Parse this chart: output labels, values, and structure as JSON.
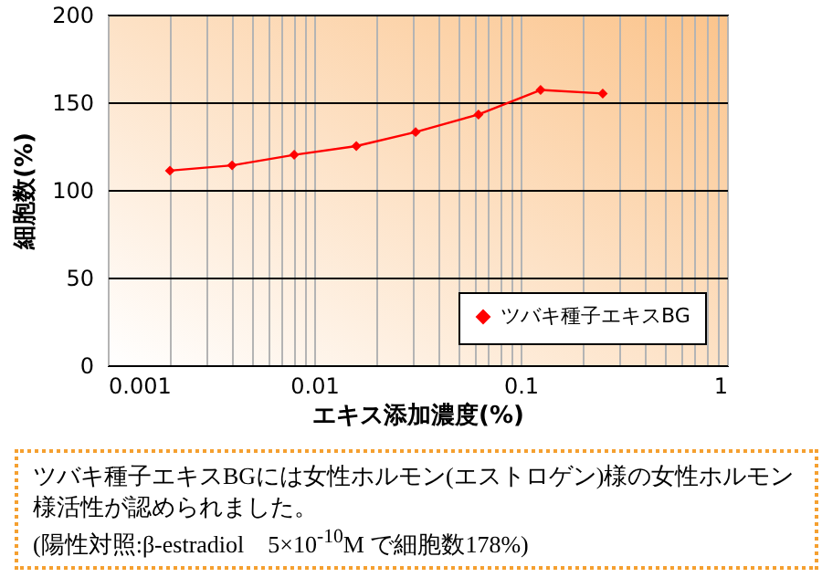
{
  "chart_data": {
    "type": "line",
    "xlabel": "エキス添加濃度(%)",
    "ylabel": "細胞数(%)",
    "x": [
      0.002,
      0.004,
      0.008,
      0.016,
      0.031,
      0.0625,
      0.125,
      0.25
    ],
    "series": [
      {
        "name": "ツバキ種子エキスBG",
        "color": "#ff0000",
        "values": [
          111,
          114,
          120,
          125,
          133,
          143,
          157,
          155
        ]
      }
    ],
    "log": "x",
    "xlim": [
      0.001,
      1
    ],
    "xticks": [
      0.001,
      {
        "value": 0.002,
        "label": null
      },
      {
        "value": 0.003,
        "label": null
      },
      {
        "value": 0.004,
        "label": null
      },
      {
        "value": 0.005,
        "label": null
      },
      {
        "value": 0.006,
        "label": null
      },
      {
        "value": 0.007,
        "label": null
      },
      {
        "value": 0.008,
        "label": null
      },
      {
        "value": 0.009,
        "label": null
      },
      0.01,
      {
        "value": 0.02,
        "label": null
      },
      {
        "value": 0.03,
        "label": null
      },
      {
        "value": 0.04,
        "label": null
      },
      {
        "value": 0.05,
        "label": null
      },
      {
        "value": 0.06,
        "label": null
      },
      {
        "value": 0.07,
        "label": null
      },
      {
        "value": 0.08,
        "label": null
      },
      {
        "value": 0.09,
        "label": null
      },
      0.1,
      {
        "value": 0.2,
        "label": null
      },
      {
        "value": 0.3,
        "label": null
      },
      {
        "value": 0.4,
        "label": null
      },
      {
        "value": 0.5,
        "label": null
      },
      {
        "value": 0.6,
        "label": null
      },
      {
        "value": 0.7,
        "label": null
      },
      {
        "value": 0.8,
        "label": null
      },
      {
        "value": 0.9,
        "label": null
      },
      1
    ],
    "ylim": [
      0,
      200
    ],
    "yticks": [
      0,
      50,
      100,
      150,
      200
    ],
    "grid": true,
    "legend": "bottom right",
    "marker": "diamond",
    "line_style": "solid",
    "annotations": [
      "ツバキ種子エキスBGには女性ホルモン(エストロゲン)様の女性ホルモン様活性が認められました。",
      "(陽性対照:β-estradiol　5×10$^{-10}$M で細胞数178%)"
    ]
  }
}
